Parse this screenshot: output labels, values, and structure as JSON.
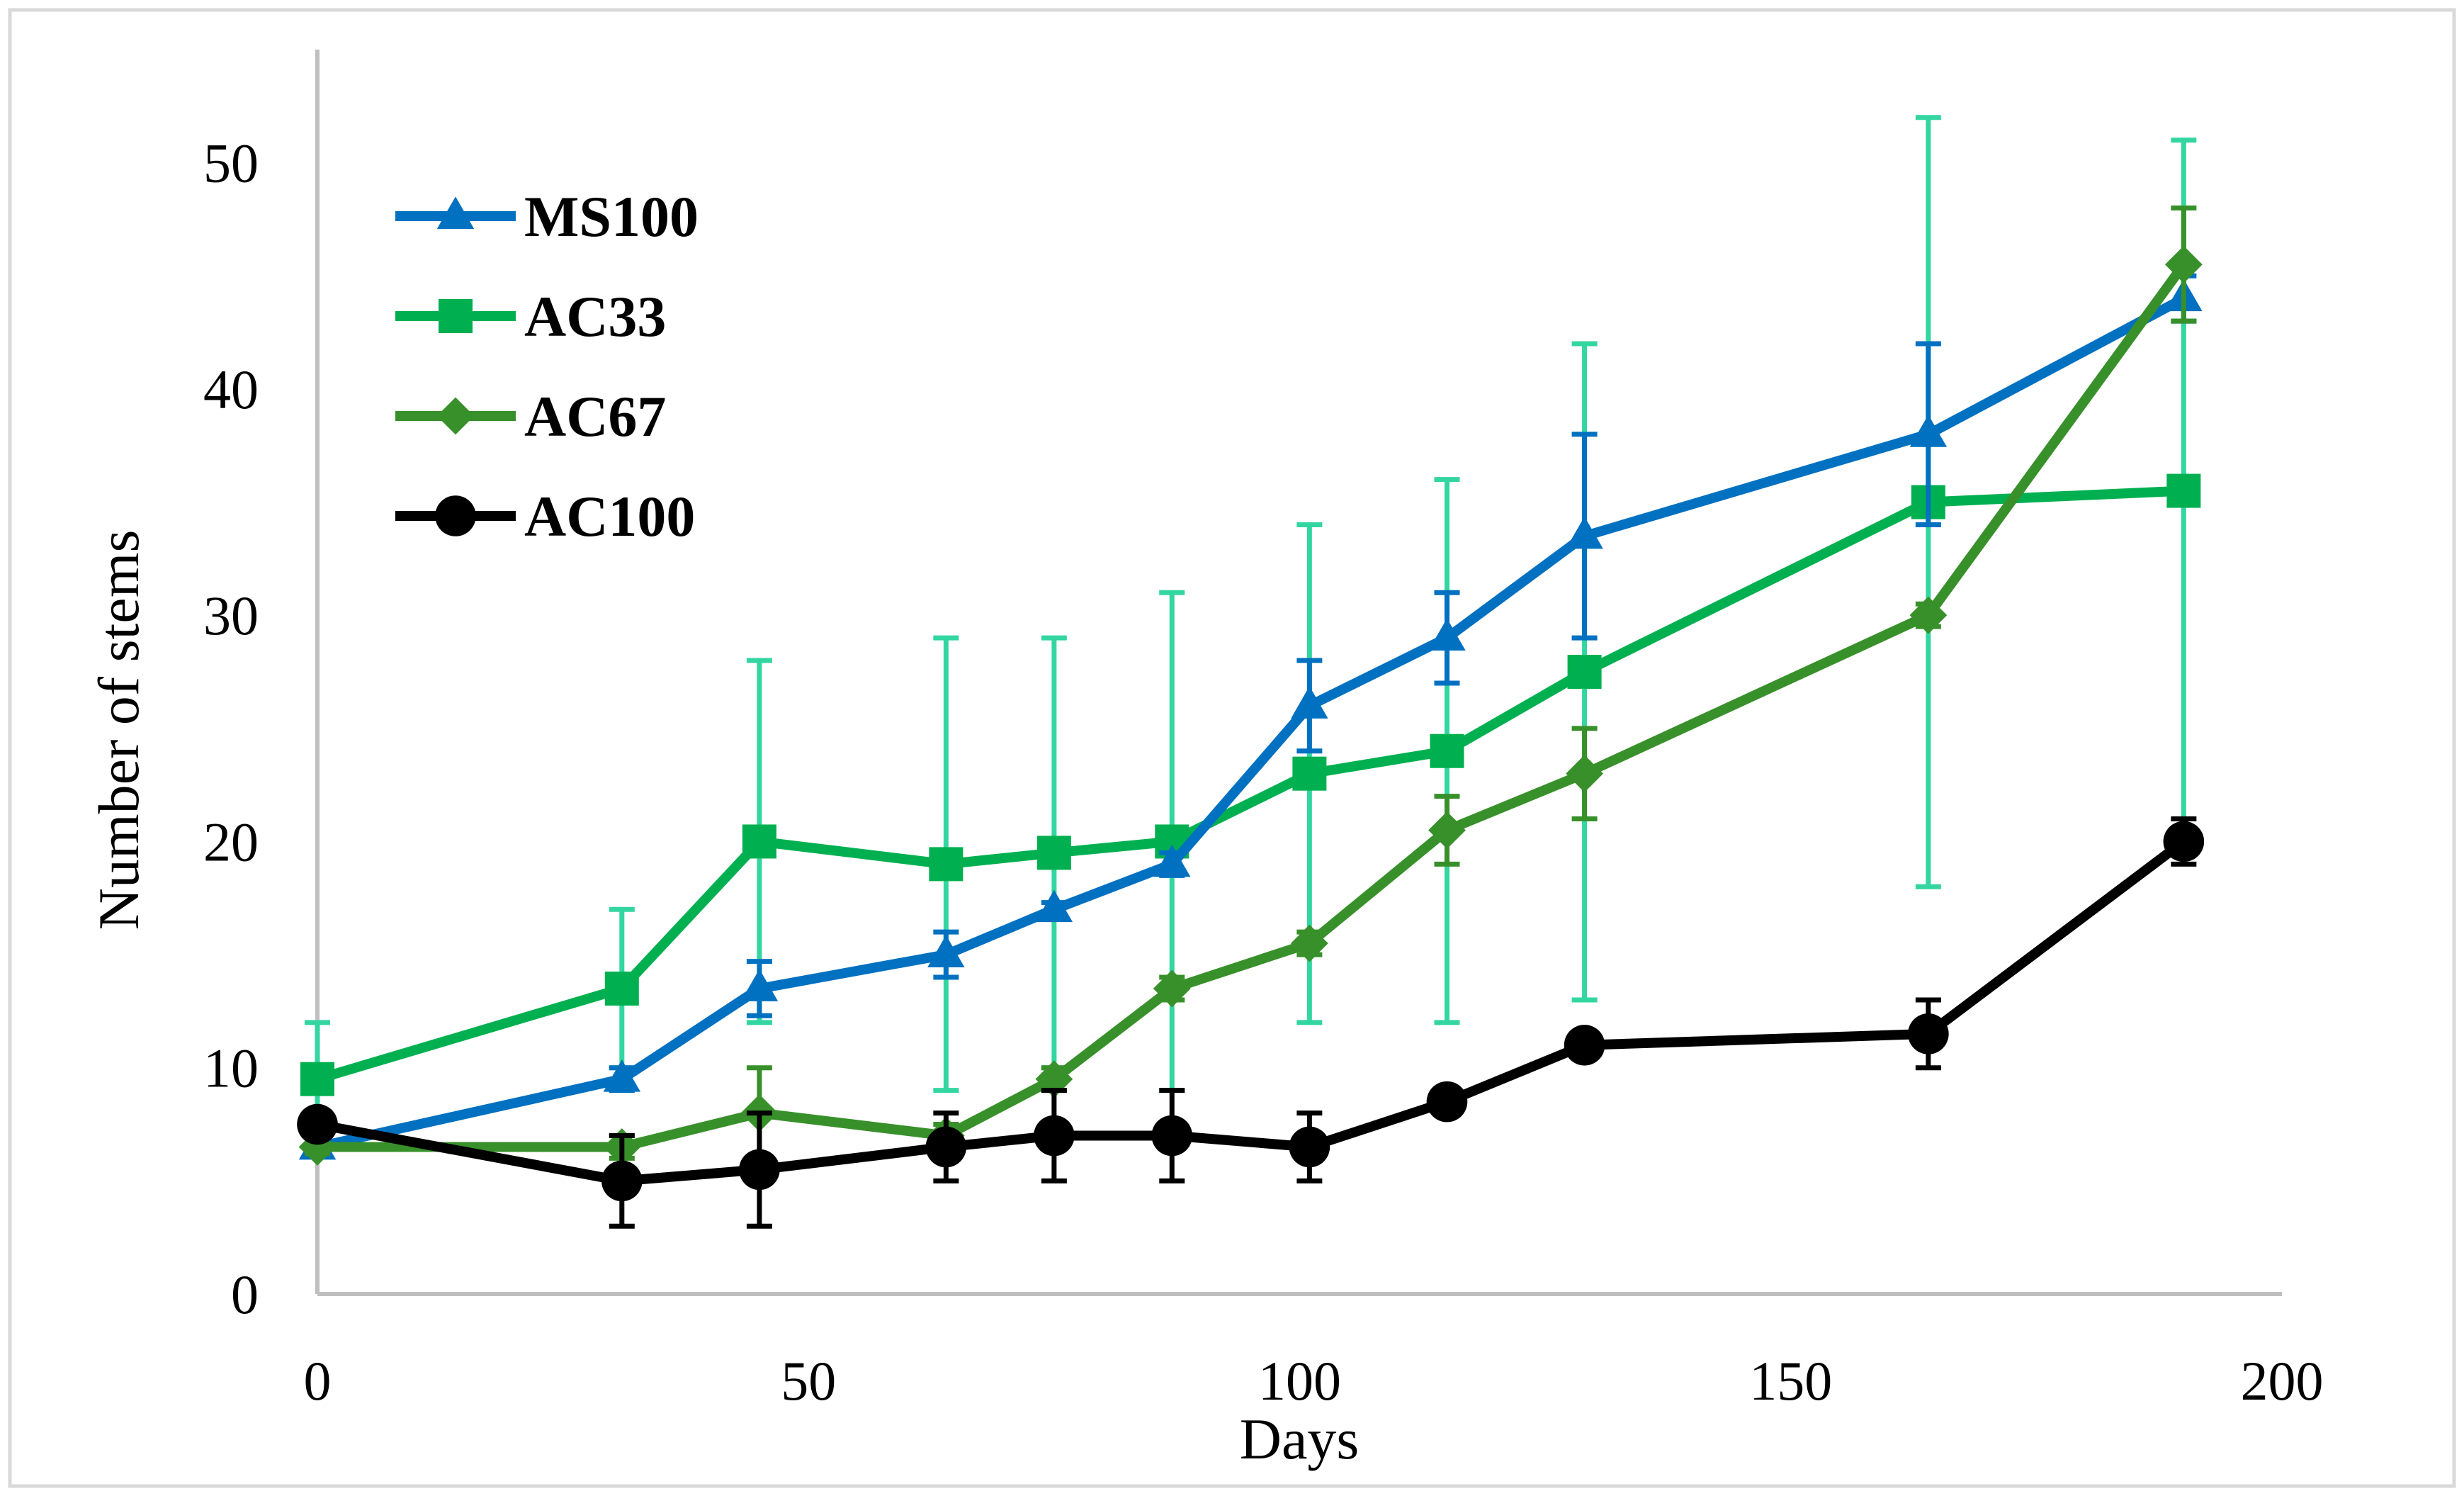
{
  "chart_data": {
    "type": "line",
    "title": "",
    "xlabel": "Days",
    "ylabel": "Number of stems",
    "xlim": [
      0,
      200
    ],
    "ylim": [
      0,
      55
    ],
    "xticks": [
      0,
      50,
      100,
      150,
      200
    ],
    "yticks": [
      0,
      10,
      20,
      30,
      40,
      50
    ],
    "grid": false,
    "legend_position": "top-left",
    "series": [
      {
        "name": "MS100",
        "color": "#0070C0",
        "marker": "triangle",
        "error_color": "#0070C0",
        "x": [
          0,
          31,
          45,
          64,
          75,
          87,
          101,
          115,
          129,
          164,
          190
        ],
        "y": [
          6.5,
          9.5,
          13.5,
          15,
          17,
          19,
          26,
          29,
          33.5,
          38,
          44
        ],
        "err": [
          0.3,
          0.5,
          1.2,
          1,
          0.3,
          0.5,
          2,
          2,
          4.5,
          4,
          1
        ]
      },
      {
        "name": "AC33",
        "color": "#00B050",
        "marker": "square",
        "error_color": "#33D6A0",
        "x": [
          0,
          31,
          45,
          64,
          75,
          87,
          101,
          115,
          129,
          164,
          190
        ],
        "y": [
          9.5,
          13.5,
          20,
          19,
          19.5,
          20,
          23,
          24,
          27.5,
          35,
          35.5
        ],
        "err": [
          2.5,
          3.5,
          8,
          10,
          9.5,
          11,
          11,
          12,
          14.5,
          17,
          15.5
        ]
      },
      {
        "name": "AC67",
        "color": "#38902A",
        "marker": "diamond",
        "error_color": "#38902A",
        "x": [
          0,
          31,
          45,
          64,
          75,
          87,
          101,
          115,
          129,
          164,
          190
        ],
        "y": [
          6.5,
          6.5,
          8,
          7,
          9.5,
          13.5,
          15.5,
          20.5,
          23,
          30,
          45.5
        ],
        "err": [
          0.3,
          0.5,
          2,
          0.5,
          0.5,
          0.5,
          0.5,
          1.5,
          2,
          0.5,
          2.5
        ]
      },
      {
        "name": "AC100",
        "color": "#000000",
        "marker": "circle",
        "error_color": "#000000",
        "x": [
          0,
          31,
          45,
          64,
          75,
          87,
          101,
          115,
          129,
          164,
          190
        ],
        "y": [
          7.5,
          5,
          5.5,
          6.5,
          7,
          7,
          6.5,
          8.5,
          11,
          11.5,
          20
        ],
        "err": [
          0.3,
          2,
          2.5,
          1.5,
          2,
          2,
          1.5,
          0.3,
          0.3,
          1.5,
          1
        ]
      }
    ]
  }
}
